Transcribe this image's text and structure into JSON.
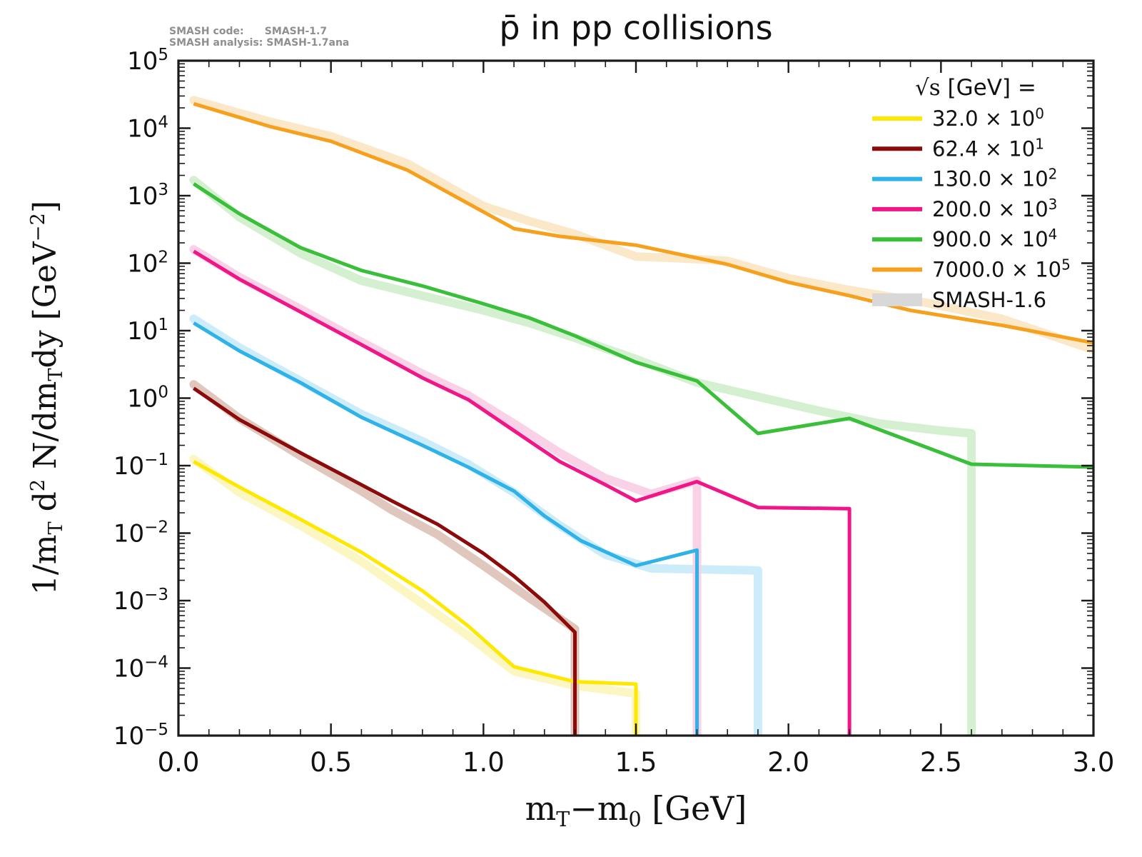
{
  "chart_data": {
    "type": "line",
    "title": "p̄ in pp collisions",
    "corner_note": [
      "SMASH code:      SMASH-1.7",
      "SMASH analysis: SMASH-1.7ana"
    ],
    "xlabel_parts": [
      {
        "t": "m"
      },
      {
        "t": "T",
        "s": "sub"
      },
      {
        "t": "−m"
      },
      {
        "t": "0",
        "s": "sub"
      },
      {
        "t": " [GeV]"
      }
    ],
    "ylabel_parts": [
      {
        "t": "1/m"
      },
      {
        "t": "T",
        "s": "sub"
      },
      {
        "t": " d"
      },
      {
        "t": "2",
        "s": "sup"
      },
      {
        "t": " N/dm"
      },
      {
        "t": "T",
        "s": "sub"
      },
      {
        "t": "dy  [GeV"
      },
      {
        "t": "−2",
        "s": "sup"
      },
      {
        "t": "]"
      }
    ],
    "xlim": [
      0.0,
      3.0
    ],
    "ylog_exp_range": [
      -5,
      5
    ],
    "x_major_ticks": [
      0.0,
      0.5,
      1.0,
      1.5,
      2.0,
      2.5,
      3.0
    ],
    "x_tick_labels": [
      "0.0",
      "0.5",
      "1.0",
      "1.5",
      "2.0",
      "2.5",
      "3.0"
    ],
    "x_minor_step": 0.1,
    "y_tick_exponents": [
      5,
      4,
      3,
      2,
      1,
      0,
      -1,
      -2,
      -3,
      -4,
      -5
    ],
    "grid": false,
    "legend_position": "upper-right",
    "legend": {
      "title_parts": [
        {
          "t": "√s ",
          "f": "serif"
        },
        {
          "t": " [GeV] ="
        }
      ],
      "entries": [
        {
          "value": "32.0",
          "exp": "0",
          "color": "#ffe800"
        },
        {
          "value": "62.4",
          "exp": "1",
          "color": "#8c0a0a"
        },
        {
          "value": "130.0",
          "exp": "2",
          "color": "#2eb2e8"
        },
        {
          "value": "200.0",
          "exp": "3",
          "color": "#f01688"
        },
        {
          "value": "900.0",
          "exp": "4",
          "color": "#3abf3a"
        },
        {
          "value": "7000.0",
          "exp": "5",
          "color": "#f6a01e"
        }
      ],
      "band_entry": {
        "label": "SMASH-1.6",
        "color": "#d8d8d8"
      }
    },
    "series": [
      {
        "name": "sqrt-s-32-smash17",
        "label": "32.0 × 10⁰",
        "color": "#ffe800",
        "x": [
          0.05,
          0.2,
          0.4,
          0.6,
          0.8,
          0.95,
          1.1,
          1.3,
          1.5
        ],
        "v": [
          0.115,
          0.048,
          0.016,
          0.0052,
          0.0014,
          0.00042,
          0.000105,
          6.3e-05,
          5.8e-05
        ],
        "drop_at": 1.5
      },
      {
        "name": "sqrt-s-62-smash17",
        "label": "62.4 × 10¹",
        "color": "#8c0a0a",
        "x": [
          0.05,
          0.2,
          0.4,
          0.6,
          0.7,
          0.85,
          1.0,
          1.1,
          1.2,
          1.3
        ],
        "v": [
          1.4,
          0.48,
          0.155,
          0.052,
          0.03,
          0.0135,
          0.005,
          0.0023,
          0.00095,
          0.00034
        ],
        "drop_at": 1.3
      },
      {
        "name": "sqrt-s-130-smash17",
        "label": "130.0 × 10²",
        "color": "#2eb2e8",
        "x": [
          0.05,
          0.2,
          0.4,
          0.6,
          0.8,
          0.95,
          1.1,
          1.2,
          1.32,
          1.5,
          1.7
        ],
        "v": [
          13,
          5.0,
          1.7,
          0.52,
          0.2,
          0.095,
          0.042,
          0.018,
          0.0077,
          0.0033,
          0.0056
        ],
        "drop_at": 1.7
      },
      {
        "name": "sqrt-s-200-smash17",
        "label": "200.0 × 10³",
        "color": "#f01688",
        "x": [
          0.05,
          0.2,
          0.4,
          0.6,
          0.8,
          0.95,
          1.1,
          1.25,
          1.4,
          1.5,
          1.7,
          1.9,
          2.2
        ],
        "v": [
          150,
          58,
          19,
          6.2,
          2.0,
          0.95,
          0.33,
          0.115,
          0.052,
          0.03,
          0.058,
          0.024,
          0.023
        ],
        "drop_at": 2.2
      },
      {
        "name": "sqrt-s-900-smash17",
        "label": "900.0 × 10⁴",
        "color": "#3abf3a",
        "x": [
          0.05,
          0.2,
          0.4,
          0.6,
          0.8,
          1.0,
          1.15,
          1.3,
          1.5,
          1.7,
          1.9,
          2.2,
          2.6,
          3.0
        ],
        "v": [
          1500,
          540,
          170,
          78,
          46,
          25,
          15.5,
          8.4,
          3.4,
          1.8,
          0.3,
          0.5,
          0.105,
          0.095
        ],
        "drop_at": null
      },
      {
        "name": "sqrt-s-7000-smash17",
        "label": "7000.0 × 10⁵",
        "color": "#f6a01e",
        "x": [
          0.05,
          0.3,
          0.5,
          0.75,
          1.0,
          1.1,
          1.25,
          1.5,
          1.8,
          2.0,
          2.2,
          2.4,
          2.7,
          3.0
        ],
        "v": [
          23000,
          10600,
          6400,
          2400,
          575,
          325,
          250,
          185,
          96,
          52,
          33,
          20,
          12,
          6.6
        ],
        "drop_at": null
      }
    ],
    "bands": [
      {
        "name": "sqrt-s-32-smash16",
        "color": "#fcf5bb",
        "x": [
          0.05,
          0.2,
          0.4,
          0.6,
          0.8,
          0.95,
          1.1,
          1.3,
          1.45,
          1.5
        ],
        "v": [
          0.125,
          0.04,
          0.013,
          0.0038,
          0.0009,
          0.0003,
          9e-05,
          5.5e-05,
          4.5e-05,
          4.2e-05
        ],
        "drop_at": 1.5
      },
      {
        "name": "sqrt-s-62-smash16",
        "color": "#dcc1b6",
        "x": [
          0.05,
          0.2,
          0.4,
          0.6,
          0.7,
          0.85,
          1.0,
          1.15,
          1.3
        ],
        "v": [
          1.6,
          0.5,
          0.14,
          0.042,
          0.022,
          0.0095,
          0.0033,
          0.0011,
          0.00038
        ],
        "drop_at": 1.3
      },
      {
        "name": "sqrt-s-130-smash16",
        "color": "#c7eafa",
        "x": [
          0.05,
          0.2,
          0.4,
          0.6,
          0.8,
          0.95,
          1.1,
          1.25,
          1.4,
          1.55,
          1.9
        ],
        "v": [
          15,
          5.6,
          1.8,
          0.58,
          0.23,
          0.105,
          0.04,
          0.013,
          0.0048,
          0.003,
          0.0028
        ],
        "drop_at": 1.9
      },
      {
        "name": "sqrt-s-200-smash16",
        "color": "#facde4",
        "x": [
          0.05,
          0.2,
          0.4,
          0.6,
          0.8,
          0.95,
          1.1,
          1.25,
          1.4,
          1.55,
          1.7
        ],
        "v": [
          160,
          62,
          21,
          6.8,
          2.3,
          1.1,
          0.42,
          0.155,
          0.065,
          0.038,
          0.06
        ],
        "drop_at": 1.7
      },
      {
        "name": "sqrt-s-900-smash16",
        "color": "#d0eecb",
        "x": [
          0.05,
          0.2,
          0.4,
          0.6,
          0.8,
          1.0,
          1.15,
          1.3,
          1.5,
          1.7,
          1.9,
          2.1,
          2.3,
          2.5,
          2.6
        ],
        "v": [
          1700,
          480,
          140,
          55,
          33,
          20,
          13,
          7.8,
          3.8,
          1.7,
          1.05,
          0.65,
          0.42,
          0.33,
          0.3
        ],
        "drop_at": 2.6
      },
      {
        "name": "sqrt-s-7000-smash16",
        "color": "#fbe6c3",
        "x": [
          0.05,
          0.3,
          0.5,
          0.75,
          1.0,
          1.15,
          1.3,
          1.5,
          1.65,
          1.8,
          2.0,
          2.2,
          2.45,
          2.7,
          3.0
        ],
        "v": [
          26000,
          12500,
          7600,
          3000,
          700,
          420,
          270,
          125,
          118,
          108,
          60,
          40,
          26,
          15,
          5.2
        ],
        "drop_at": null
      }
    ]
  }
}
